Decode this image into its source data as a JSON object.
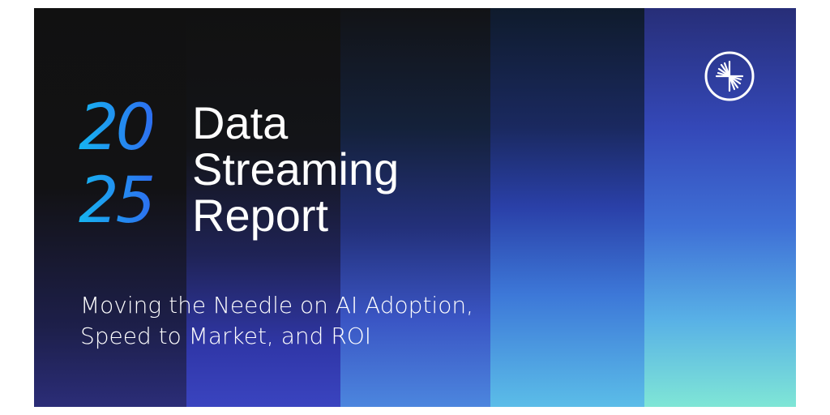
{
  "banner": {
    "year_top": "20",
    "year_bottom": "25",
    "title_lines": [
      "Data",
      "Streaming",
      "Report"
    ],
    "subtitle_lines": [
      "Moving the Needle on AI Adoption,",
      "Speed to Market, and ROI"
    ],
    "logo_icon": "starburst-circle-logo",
    "colors": {
      "year": "#1f8ef0",
      "title": "#ffffff",
      "background_dark": "#111111",
      "accent_teal": "#7fe6d6"
    }
  }
}
